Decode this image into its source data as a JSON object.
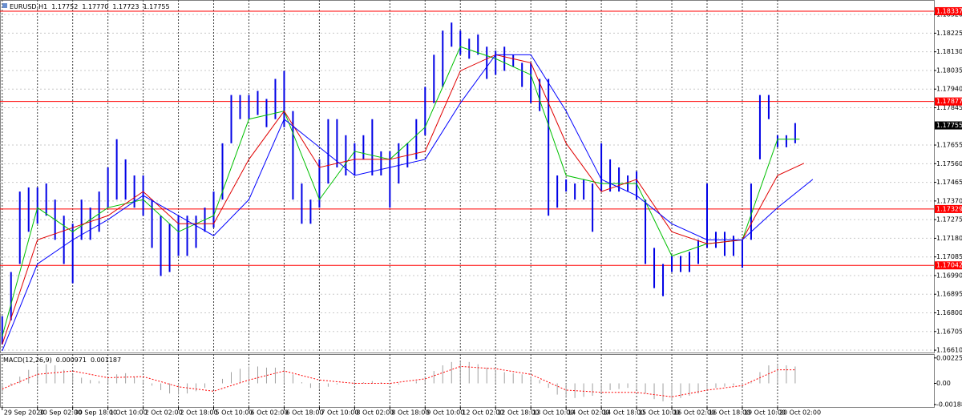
{
  "chart_data": [
    {
      "type": "ohlc",
      "title": "EURUSD,H1",
      "ohlc_text": [
        "1.17752",
        "1.17770",
        "1.17723",
        "1.17755"
      ],
      "color": "#0000e6",
      "x": [
        0,
        4,
        8,
        12,
        16,
        20,
        24,
        28,
        32,
        36,
        40,
        44,
        48,
        52,
        56,
        60,
        64,
        68,
        72,
        76,
        80,
        84,
        88,
        92,
        96,
        100,
        104,
        108,
        112,
        116,
        120,
        124,
        128,
        132,
        136,
        140,
        144,
        148,
        152,
        156,
        160,
        164,
        168,
        172,
        176,
        180,
        184,
        188,
        192,
        196,
        200,
        204,
        208,
        212,
        216,
        220,
        224,
        228,
        232,
        236,
        240,
        244,
        248,
        252,
        256,
        260,
        264,
        268,
        272,
        276,
        280,
        284,
        288,
        292,
        296,
        300,
        304,
        308,
        312,
        316,
        320,
        324,
        328,
        332,
        336,
        340,
        344,
        348,
        352,
        356,
        360
      ],
      "high": [
        1.16783,
        1.17008,
        1.17418,
        1.17439,
        1.17439,
        1.17459,
        1.17377,
        1.17295,
        1.17254,
        1.17377,
        1.17336,
        1.17418,
        1.17541,
        1.17685,
        1.17582,
        1.175,
        1.175,
        1.17377,
        1.17295,
        1.17254,
        1.17295,
        1.17295,
        1.17295,
        1.17336,
        1.17418,
        1.17664,
        1.1791,
        1.1791,
        1.1791,
        1.17931,
        1.1789,
        1.17992,
        1.18033,
        1.17828,
        1.17459,
        1.17377,
        1.17582,
        1.17787,
        1.17787,
        1.17705,
        1.17664,
        1.17705,
        1.17787,
        1.17623,
        1.17623,
        1.17664,
        1.17664,
        1.17787,
        1.17951,
        1.18115,
        1.18238,
        1.18279,
        1.18238,
        1.18197,
        1.18218,
        1.18156,
        1.18136,
        1.18156,
        1.18115,
        1.18074,
        1.18074,
        1.17992,
        1.17992,
        1.175,
        1.1748,
        1.17459,
        1.1748,
        1.17459,
        1.17664,
        1.17582,
        1.17541,
        1.175,
        1.17521,
        1.17377,
        1.17131,
        1.17049,
        1.1709,
        1.1709,
        1.17111,
        1.17172,
        1.17459,
        1.17213,
        1.17213,
        1.17193,
        1.17172,
        1.17459,
        1.1791,
        1.1791,
        1.17705,
        1.17705,
        1.17767
      ],
      "low": [
        1.16639,
        1.16762,
        1.17049,
        1.17213,
        1.17254,
        1.17295,
        1.17172,
        1.17049,
        1.16951,
        1.17172,
        1.17172,
        1.17213,
        1.17336,
        1.17377,
        1.17377,
        1.17336,
        1.17295,
        1.17131,
        1.16988,
        1.17008,
        1.1709,
        1.1709,
        1.17131,
        1.17213,
        1.17234,
        1.17377,
        1.17664,
        1.17787,
        1.17787,
        1.17808,
        1.17746,
        1.17787,
        1.17746,
        1.17377,
        1.17254,
        1.17254,
        1.17336,
        1.17459,
        1.17541,
        1.175,
        1.175,
        1.17582,
        1.175,
        1.175,
        1.17336,
        1.17459,
        1.17541,
        1.17582,
        1.17705,
        1.17869,
        1.17951,
        1.18156,
        1.18115,
        1.18095,
        1.18115,
        1.17992,
        1.18013,
        1.18033,
        1.18054,
        1.17951,
        1.17869,
        1.17828,
        1.17295,
        1.17336,
        1.17418,
        1.17377,
        1.17377,
        1.17213,
        1.17418,
        1.17418,
        1.17418,
        1.17418,
        1.17377,
        1.17049,
        1.16926,
        1.16885,
        1.17008,
        1.17008,
        1.17008,
        1.17049,
        1.17131,
        1.17131,
        1.1709,
        1.1709,
        1.17029,
        1.17172,
        1.17582,
        1.17787,
        1.17644,
        1.17644,
        1.17664
      ],
      "moving_averages": [
        {
          "color": "#00c000",
          "x": [
            0,
            16,
            32,
            48,
            64,
            80,
            96,
            112,
            128,
            144,
            160,
            176,
            192,
            208,
            224,
            240,
            256,
            272,
            288,
            304,
            320,
            336,
            352,
            362
          ],
          "values": [
            1.1668,
            1.17336,
            1.17213,
            1.17336,
            1.17377,
            1.17213,
            1.17295,
            1.17787,
            1.17828,
            1.17377,
            1.17623,
            1.17582,
            1.17746,
            1.18156,
            1.18095,
            1.18013,
            1.175,
            1.17459,
            1.17459,
            1.1709,
            1.17152,
            1.17172,
            1.17685,
            1.17685
          ]
        },
        {
          "color": "#e00000",
          "x": [
            0,
            16,
            32,
            48,
            64,
            80,
            96,
            112,
            128,
            144,
            160,
            176,
            192,
            208,
            224,
            240,
            256,
            272,
            288,
            304,
            320,
            336,
            352,
            364
          ],
          "values": [
            1.16639,
            1.17172,
            1.17234,
            1.17295,
            1.17418,
            1.17254,
            1.17254,
            1.17582,
            1.17828,
            1.17541,
            1.17582,
            1.17582,
            1.17623,
            1.18033,
            1.18115,
            1.18074,
            1.17664,
            1.17418,
            1.1748,
            1.17213,
            1.17152,
            1.17172,
            1.175,
            1.17562
          ]
        },
        {
          "color": "#0000ff",
          "x": [
            0,
            16,
            32,
            48,
            64,
            80,
            96,
            112,
            128,
            144,
            160,
            176,
            192,
            208,
            224,
            240,
            256,
            272,
            288,
            304,
            320,
            336,
            352,
            368
          ],
          "values": [
            1.16606,
            1.17049,
            1.17172,
            1.17275,
            1.17398,
            1.17295,
            1.17193,
            1.17377,
            1.17787,
            1.17644,
            1.175,
            1.17541,
            1.17582,
            1.17869,
            1.18115,
            1.18115,
            1.17828,
            1.1748,
            1.17398,
            1.17254,
            1.17172,
            1.17172,
            1.17336,
            1.1748
          ]
        }
      ],
      "levels": [
        1.18337,
        1.17877,
        1.17329,
        1.17042
      ],
      "level_color": "#ff0000",
      "current_price": 1.17755,
      "xlim": [
        -1,
        423
      ],
      "ylim": [
        1.16598,
        1.18394
      ],
      "yticks": [
        {
          "value": 1.1661,
          "label": "1.16610"
        },
        1.16705,
        {
          "value": 1.168,
          "label": "1.16800"
        },
        1.16895,
        {
          "value": 1.1699,
          "label": "1.16990"
        },
        1.17085,
        {
          "value": 1.1718,
          "label": "1.17180"
        },
        1.17275,
        {
          "value": 1.1737,
          "label": "1.17370"
        },
        1.17465,
        {
          "value": 1.1756,
          "label": "1.17560"
        },
        1.17655,
        1.17845,
        {
          "value": 1.1794,
          "label": "1.17940"
        },
        1.18035,
        {
          "value": 1.1813,
          "label": "1.18130"
        },
        1.18225,
        {
          "value": 1.1832,
          "label": "1.18320"
        }
      ],
      "xticks": [
        {
          "value": 0,
          "label": "29 Sep 2020"
        },
        {
          "value": 16,
          "label": "30 Sep 02:00"
        },
        {
          "value": 32,
          "label": "30 Sep 18:00"
        },
        {
          "value": 48,
          "label": "1 Oct 10:00"
        },
        {
          "value": 64,
          "label": "2 Oct 02:00"
        },
        {
          "value": 80,
          "label": "2 Oct 18:00"
        },
        {
          "value": 96,
          "label": "5 Oct 10:00"
        },
        {
          "value": 112,
          "label": "6 Oct 02:00"
        },
        {
          "value": 128,
          "label": "6 Oct 18:00"
        },
        {
          "value": 144,
          "label": "7 Oct 10:00"
        },
        {
          "value": 160,
          "label": "8 Oct 02:00"
        },
        {
          "value": 176,
          "label": "8 Oct 18:00"
        },
        {
          "value": 192,
          "label": "9 Oct 10:00"
        },
        {
          "value": 208,
          "label": "12 Oct 02:00"
        },
        {
          "value": 224,
          "label": "12 Oct 18:00"
        },
        {
          "value": 240,
          "label": "13 Oct 10:00"
        },
        {
          "value": 256,
          "label": "14 Oct 02:00"
        },
        {
          "value": 272,
          "label": "14 Oct 18:00"
        },
        {
          "value": 288,
          "label": "15 Oct 10:00"
        },
        {
          "value": 304,
          "label": "16 Oct 02:00"
        },
        {
          "value": 320,
          "label": "16 Oct 18:00"
        },
        {
          "value": 336,
          "label": "19 Oct 10:00"
        },
        {
          "value": 352,
          "label": "20 Oct 02:00"
        }
      ],
      "grid": true
    },
    {
      "type": "macd",
      "title": "MACD(12,26,9)",
      "values_text": [
        "0.000971",
        "0.001187"
      ],
      "histogram_color": "#a0a0a0",
      "x": [
        0,
        4,
        8,
        12,
        16,
        20,
        24,
        28,
        32,
        36,
        40,
        44,
        48,
        52,
        56,
        60,
        64,
        68,
        72,
        76,
        80,
        84,
        88,
        92,
        96,
        100,
        104,
        108,
        112,
        116,
        120,
        124,
        128,
        132,
        136,
        140,
        144,
        148,
        152,
        156,
        160,
        164,
        168,
        172,
        176,
        180,
        184,
        188,
        192,
        196,
        200,
        204,
        208,
        212,
        216,
        220,
        224,
        228,
        232,
        236,
        240,
        244,
        248,
        252,
        256,
        260,
        264,
        268,
        272,
        276,
        280,
        284,
        288,
        292,
        296,
        300,
        304,
        308,
        312,
        316,
        320,
        324,
        328,
        332,
        336,
        340,
        344,
        348,
        352,
        356,
        360
      ],
      "histogram": [
        -0.0008,
        -0.0002,
        0.0006,
        0.0012,
        0.0015,
        0.0017,
        0.0016,
        0.0012,
        0.0008,
        0.0005,
        0.0003,
        0.0002,
        0.0005,
        0.0008,
        0.0009,
        0.0006,
        0.0003,
        -0.0002,
        -0.0006,
        -0.0009,
        -0.001,
        -0.0009,
        -0.0007,
        -0.0004,
        -0.0001,
        0.0004,
        0.001,
        0.0013,
        0.0015,
        0.0015,
        0.0014,
        0.0014,
        0.0013,
        0.0008,
        0.0001,
        -0.0004,
        -0.0005,
        -0.0003,
        -0.0001,
        0,
        0.0001,
        0.0001,
        0.0002,
        0.0001,
        -0.0001,
        -0.0001,
        0,
        0.0002,
        0.0006,
        0.0011,
        0.0016,
        0.0019,
        0.002,
        0.0019,
        0.0017,
        0.0014,
        0.0012,
        0.001,
        0.0009,
        0.0008,
        0.0006,
        0.0003,
        -0.0004,
        -0.001,
        -0.0013,
        -0.0013,
        -0.0012,
        -0.0011,
        -0.0008,
        -0.0006,
        -0.0005,
        -0.0004,
        -0.0005,
        -0.0009,
        -0.0014,
        -0.0016,
        -0.0015,
        -0.0013,
        -0.0011,
        -0.0009,
        -0.0005,
        -0.0004,
        -0.0003,
        -0.0002,
        -0.0002,
        0.0001,
        0.001,
        0.0016,
        0.0017,
        0.0016,
        0.0015
      ],
      "signal": {
        "color": "#ff0000",
        "x": [
          0,
          16,
          32,
          48,
          64,
          80,
          96,
          112,
          128,
          144,
          160,
          176,
          192,
          208,
          224,
          240,
          256,
          272,
          288,
          304,
          320,
          336,
          352,
          360
        ],
        "values": [
          -0.0005,
          0.0008,
          0.0011,
          0.0005,
          0.0006,
          -0.0003,
          -0.0007,
          0.0003,
          0.0011,
          0.0003,
          0,
          0,
          0.0004,
          0.0015,
          0.0013,
          0.0008,
          -0.0006,
          -0.0008,
          -0.0008,
          -0.0012,
          -0.0006,
          -0.0002,
          0.0012,
          0.0012
        ]
      },
      "xlim": [
        -1,
        423
      ],
      "ylim": [
        -0.0021,
        0.0026
      ],
      "yticks": [
        0.002259,
        {
          "value": 0,
          "label": "0.00"
        },
        -0.001882
      ]
    }
  ]
}
